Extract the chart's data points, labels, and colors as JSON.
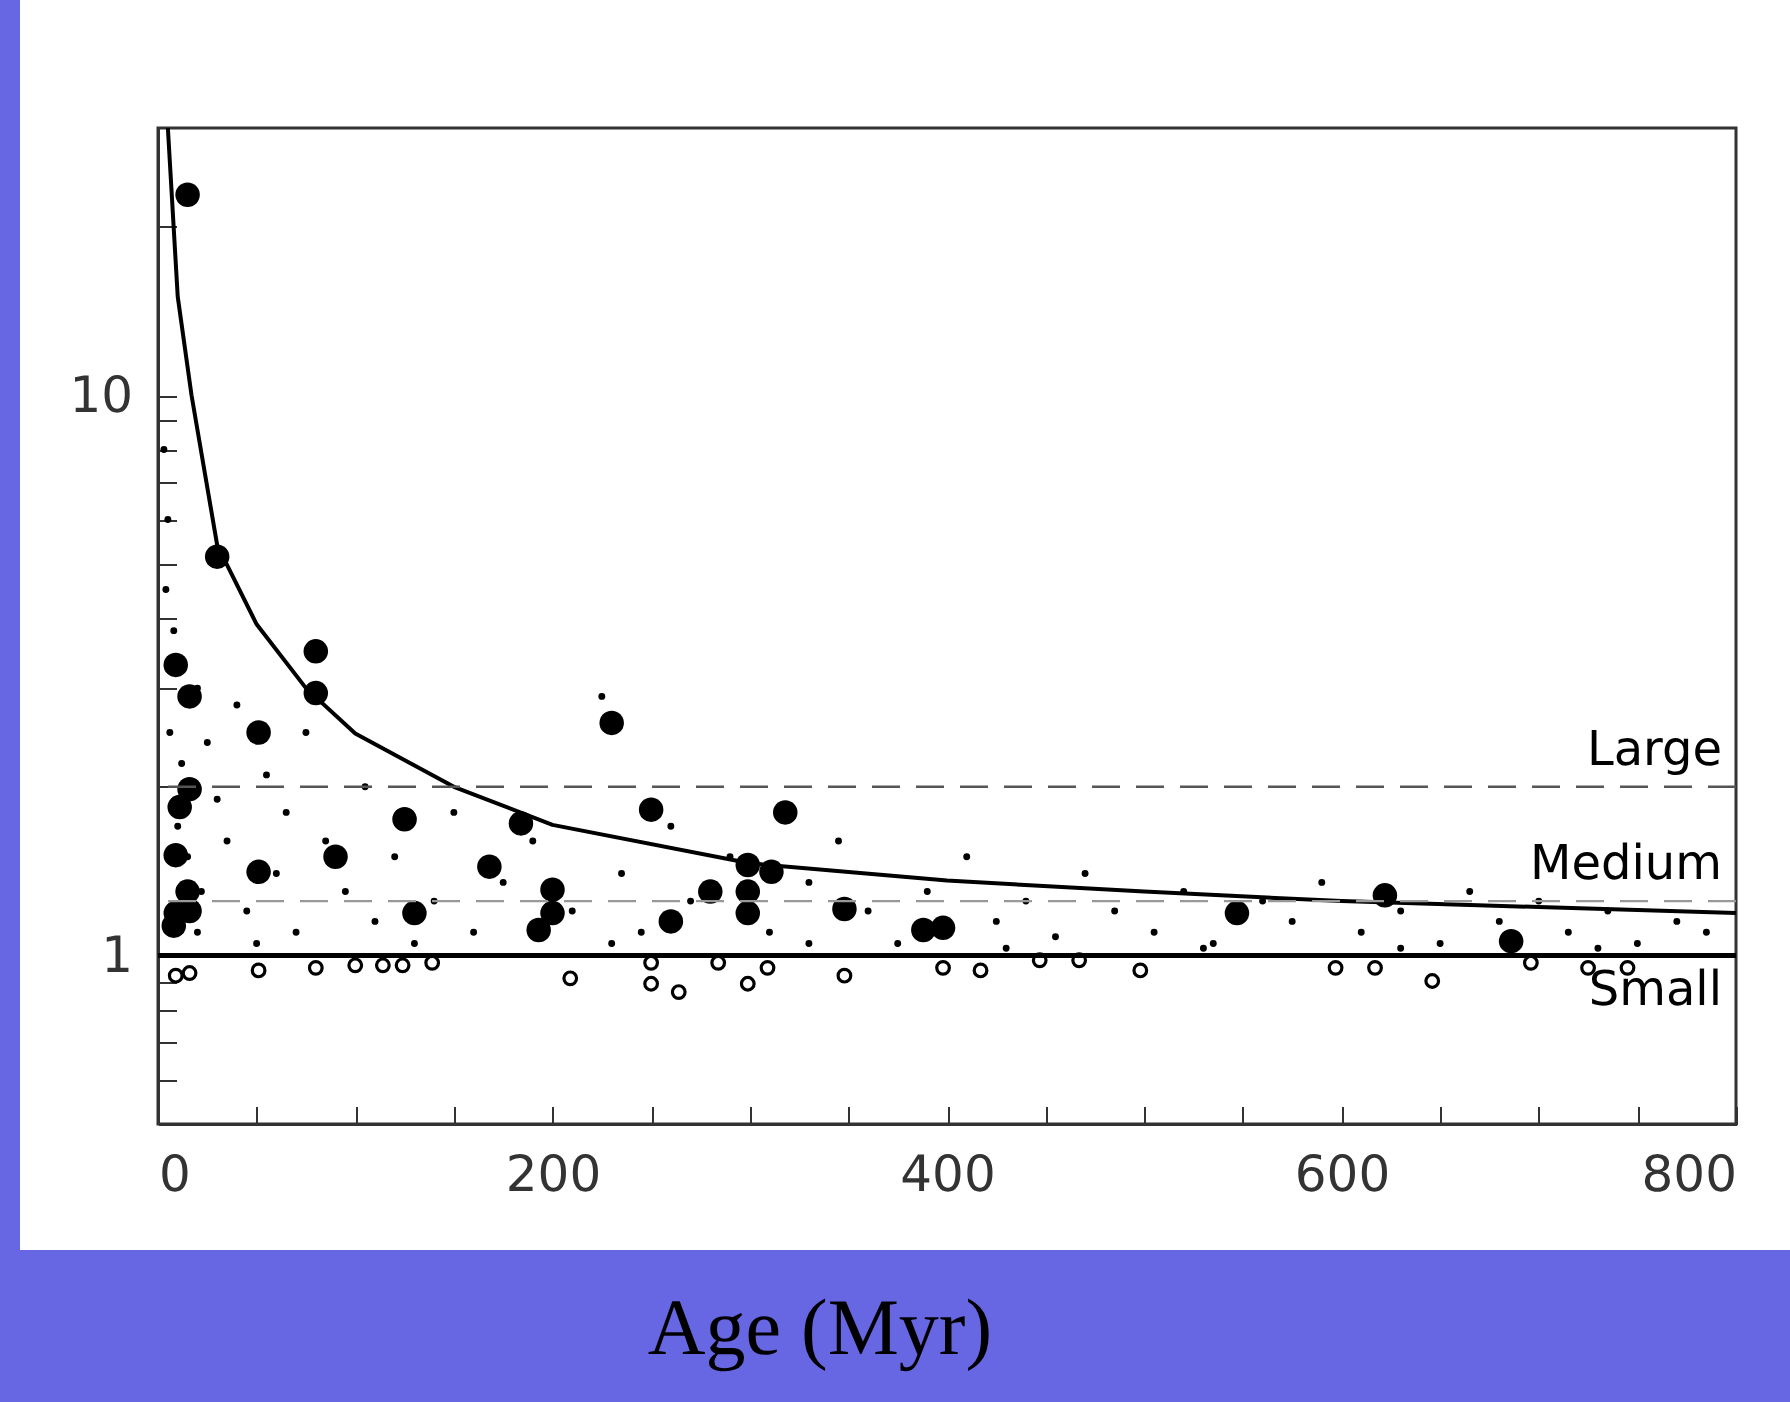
{
  "chart_data": {
    "type": "scatter",
    "xlabel": "Age (Myr)",
    "xlim": [
      0,
      800
    ],
    "ylim": [
      0.5,
      30
    ],
    "log": "y",
    "grid": false,
    "marker": "circle",
    "xticks": [
      0,
      {
        "value": 50,
        "label": null
      },
      {
        "value": 100,
        "label": null
      },
      {
        "value": 150,
        "label": null
      },
      200,
      {
        "value": 250,
        "label": null
      },
      {
        "value": 300,
        "label": null
      },
      {
        "value": 350,
        "label": null
      },
      400,
      {
        "value": 450,
        "label": null
      },
      {
        "value": 500,
        "label": null
      },
      {
        "value": 550,
        "label": null
      },
      600,
      {
        "value": 650,
        "label": null
      },
      {
        "value": 700,
        "label": null
      },
      {
        "value": 750,
        "label": null
      },
      800
    ],
    "yticks": [
      {
        "value": 0.6,
        "label": null
      },
      {
        "value": 0.7,
        "label": null
      },
      {
        "value": 0.8,
        "label": null
      },
      {
        "value": 0.9,
        "label": null
      },
      1,
      {
        "value": 2,
        "label": null
      },
      {
        "value": 3,
        "label": null
      },
      {
        "value": 4,
        "label": null
      },
      {
        "value": 5,
        "label": null
      },
      {
        "value": 6,
        "label": null
      },
      {
        "value": 7,
        "label": null
      },
      {
        "value": 8,
        "label": null
      },
      {
        "value": 9,
        "label": null
      },
      10,
      {
        "value": 20,
        "label": null
      }
    ],
    "series": [
      {
        "type": "line",
        "color": "#000000",
        "marker": "none",
        "line_style": "solid",
        "x": [
          5,
          10,
          17,
          30,
          50,
          75,
          100,
          150,
          200,
          300,
          400,
          500,
          600,
          700,
          800
        ],
        "values": [
          30,
          15,
          10,
          5.4,
          3.9,
          3.0,
          2.49,
          2.0,
          1.71,
          1.46,
          1.36,
          1.3,
          1.25,
          1.22,
          1.19
        ]
      },
      {
        "color": "#000000",
        "x": [
          3,
          5,
          4,
          8,
          6,
          12,
          10,
          15,
          20,
          25,
          30,
          22,
          35,
          40,
          45,
          55,
          60,
          65,
          70,
          75,
          85,
          95,
          105,
          110,
          120,
          140,
          150,
          160,
          175,
          190,
          210,
          225,
          235,
          245,
          260,
          270,
          290,
          310,
          330,
          345,
          360,
          375,
          390,
          410,
          425,
          440,
          455,
          470,
          485,
          505,
          520,
          535,
          560,
          575,
          590,
          610,
          630,
          650,
          665,
          680,
          700,
          715,
          735,
          750,
          770,
          785,
          20,
          50,
          130,
          230,
          330,
          430,
          530,
          630,
          730
        ],
        "values": [
          8,
          6,
          4.5,
          3.8,
          2.5,
          2.2,
          1.7,
          1.5,
          3,
          2.4,
          1.9,
          1.3,
          1.6,
          2.8,
          1.2,
          2.1,
          1.4,
          1.8,
          1.1,
          2.5,
          1.6,
          1.3,
          2.0,
          1.15,
          1.5,
          1.25,
          1.8,
          1.1,
          1.35,
          1.6,
          1.2,
          2.9,
          1.4,
          1.1,
          1.7,
          1.25,
          1.5,
          1.1,
          1.35,
          1.6,
          1.2,
          1.05,
          1.3,
          1.5,
          1.15,
          1.25,
          1.08,
          1.4,
          1.2,
          1.1,
          1.3,
          1.05,
          1.25,
          1.15,
          1.35,
          1.1,
          1.2,
          1.05,
          1.3,
          1.15,
          1.25,
          1.1,
          1.2,
          1.05,
          1.15,
          1.1,
          1.1,
          1.05,
          1.05,
          1.05,
          1.05,
          1.03,
          1.03,
          1.03,
          1.03
        ]
      },
      {
        "color": "#000000",
        "x": [
          15,
          30,
          80,
          9,
          16,
          80,
          51,
          230,
          16,
          11,
          125,
          184,
          250,
          318,
          9,
          90,
          51,
          168,
          15,
          200,
          299,
          311,
          280,
          299,
          130,
          9,
          16,
          200,
          193,
          260,
          299,
          348,
          8,
          388,
          398,
          547,
          622,
          686
        ],
        "values": [
          22.8,
          5.15,
          3.49,
          3.3,
          2.9,
          2.94,
          2.5,
          2.6,
          1.98,
          1.84,
          1.75,
          1.72,
          1.82,
          1.8,
          1.51,
          1.5,
          1.41,
          1.44,
          1.3,
          1.31,
          1.45,
          1.41,
          1.3,
          1.3,
          1.19,
          1.19,
          1.2,
          1.19,
          1.11,
          1.15,
          1.19,
          1.21,
          1.13,
          1.11,
          1.12,
          1.19,
          1.28,
          1.06
        ]
      },
      {
        "color": "#000000",
        "x": [
          9,
          16,
          51,
          80,
          100,
          114,
          124,
          139,
          209,
          250,
          264,
          299,
          309,
          348,
          250,
          284,
          398,
          417,
          447,
          467,
          498,
          597,
          617,
          646,
          696,
          725,
          745
        ],
        "values": [
          0.92,
          0.93,
          0.94,
          0.95,
          0.96,
          0.96,
          0.96,
          0.97,
          0.91,
          0.89,
          0.86,
          0.89,
          0.95,
          0.92,
          0.97,
          0.97,
          0.95,
          0.94,
          0.98,
          0.98,
          0.94,
          0.95,
          0.95,
          0.9,
          0.97,
          0.95,
          0.95
        ]
      }
    ],
    "ref_lines": [
      {
        "axis": "y",
        "value": 2,
        "line_style": "dashed",
        "color": "#555555",
        "label": "Large"
      },
      {
        "axis": "y",
        "value": 1.25,
        "line_style": "dashed",
        "color": "#999999",
        "label": "Medium"
      },
      {
        "axis": "y",
        "value": 1,
        "line_style": "solid",
        "color": "#000000",
        "label": "Small"
      }
    ]
  }
}
